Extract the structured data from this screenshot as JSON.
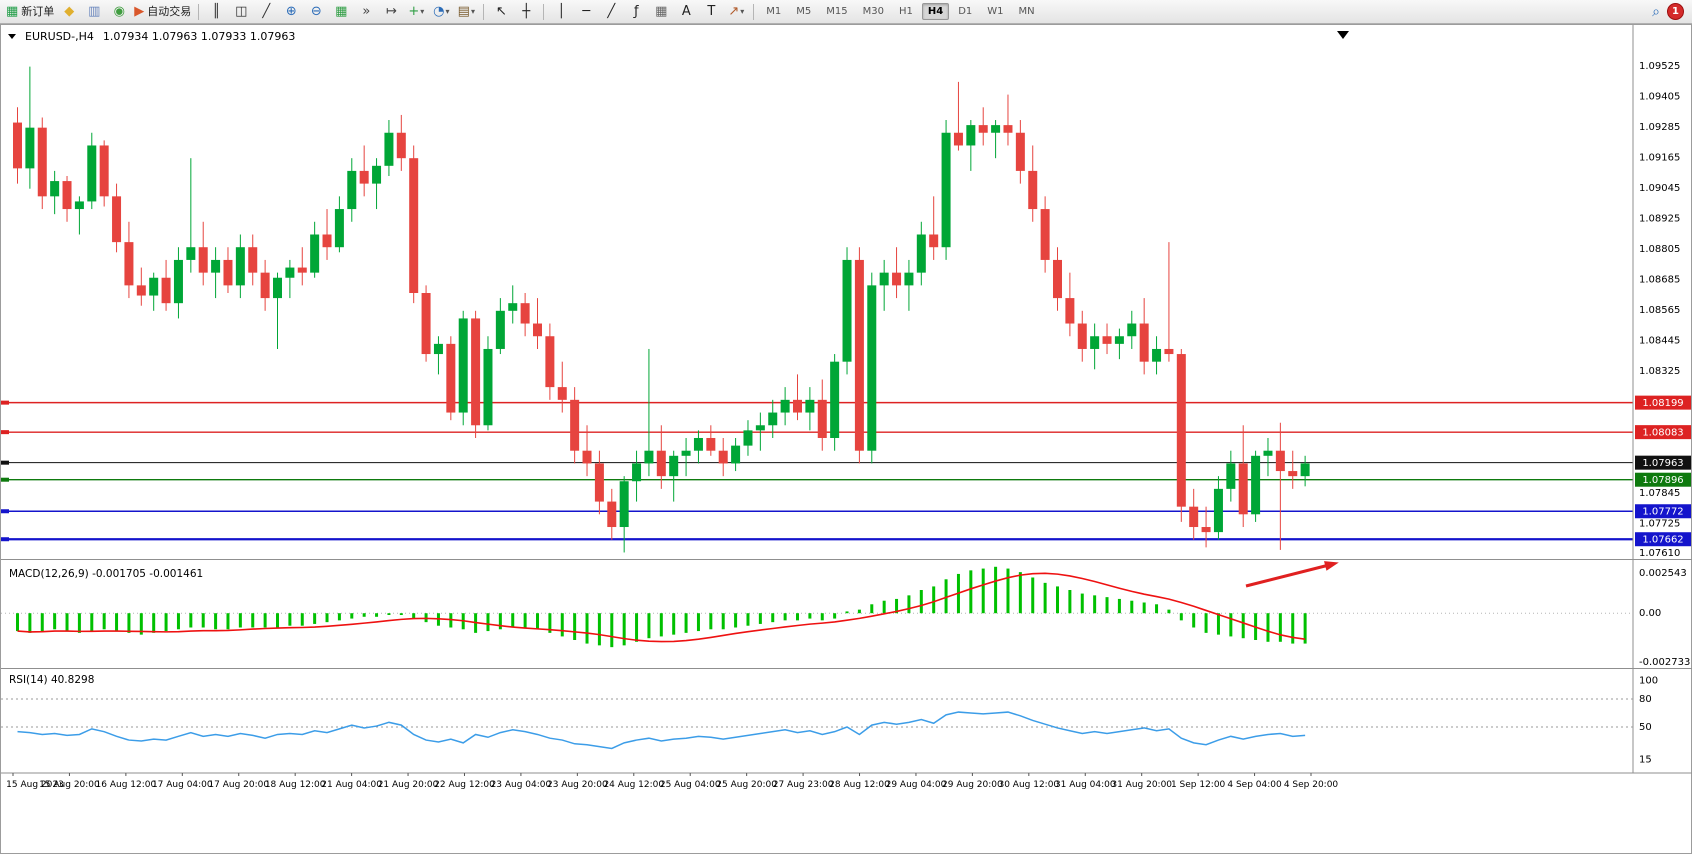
{
  "toolbar": {
    "left_items": [
      {
        "name": "new-order-button",
        "kind": "labeled",
        "glyph": "▦",
        "color": "#1f9d46",
        "label": "新订单"
      },
      {
        "name": "metaeditor-button",
        "kind": "icon",
        "glyph": "◆",
        "color": "#e0af2e"
      },
      {
        "name": "profiles-button",
        "kind": "icon",
        "glyph": "▥",
        "color": "#6a86bd"
      },
      {
        "name": "metaquotes-community-button",
        "kind": "icon",
        "glyph": "◉",
        "color": "#3f9d3f"
      },
      {
        "name": "autotrading-button",
        "kind": "labeled",
        "glyph": "▶",
        "color": "#d9572b",
        "label": "自动交易"
      },
      {
        "kind": "sep"
      },
      {
        "name": "bar-chart-button",
        "kind": "icon",
        "glyph": "║",
        "color": "#333333"
      },
      {
        "name": "candlestick-chart-button",
        "kind": "icon",
        "glyph": "◫",
        "color": "#333333"
      },
      {
        "name": "line-chart-button",
        "kind": "icon",
        "glyph": "╱",
        "color": "#333333"
      },
      {
        "name": "zoom-in-button",
        "kind": "icon",
        "glyph": "⊕",
        "color": "#2b6cb8"
      },
      {
        "name": "zoom-out-button",
        "kind": "icon",
        "glyph": "⊖",
        "color": "#2b6cb8"
      },
      {
        "name": "tile-windows-button",
        "kind": "icon",
        "glyph": "▦",
        "color": "#2f9e44"
      },
      {
        "name": "auto-scroll-button",
        "kind": "icon",
        "glyph": "»",
        "color": "#444444"
      },
      {
        "name": "chart-shift-button",
        "kind": "icon",
        "glyph": "↦",
        "color": "#444444"
      },
      {
        "name": "indicators-button",
        "kind": "dropdown",
        "glyph": "+",
        "color": "#2f9e44"
      },
      {
        "name": "periods-button",
        "kind": "dropdown",
        "glyph": "◔",
        "color": "#2b6cb8"
      },
      {
        "name": "templates-button",
        "kind": "dropdown",
        "glyph": "▤",
        "color": "#7a5c2e"
      },
      {
        "kind": "sep"
      },
      {
        "name": "cursor-button",
        "kind": "icon",
        "glyph": "↖",
        "color": "#222222"
      },
      {
        "name": "crosshair-button",
        "kind": "icon",
        "glyph": "┼",
        "color": "#222222"
      },
      {
        "kind": "sep"
      },
      {
        "name": "vertical-line-button",
        "kind": "icon",
        "glyph": "│",
        "color": "#222222"
      },
      {
        "name": "horizontal-line-button",
        "kind": "icon",
        "glyph": "─",
        "color": "#222222"
      },
      {
        "name": "trendline-button",
        "kind": "icon",
        "glyph": "╱",
        "color": "#222222"
      },
      {
        "name": "fibonacci-button",
        "kind": "icon",
        "glyph": "ƒ",
        "color": "#222222"
      },
      {
        "name": "shapes-button",
        "kind": "icon",
        "glyph": "▦",
        "color": "#666666"
      },
      {
        "name": "text-button",
        "kind": "icon",
        "glyph": "A",
        "color": "#222222"
      },
      {
        "name": "text-label-button",
        "kind": "icon",
        "glyph": "T",
        "color": "#222222"
      },
      {
        "name": "arrows-button",
        "kind": "dropdown",
        "glyph": "↗",
        "color": "#b05a2a"
      },
      {
        "kind": "sep"
      }
    ],
    "timeframes": [
      {
        "label": "M1"
      },
      {
        "label": "M5"
      },
      {
        "label": "M15"
      },
      {
        "label": "M30"
      },
      {
        "label": "H1"
      },
      {
        "label": "H4",
        "active": true
      },
      {
        "label": "D1"
      },
      {
        "label": "W1"
      },
      {
        "label": "MN"
      }
    ],
    "search_glyph": "⌕",
    "notification_badge": "1"
  },
  "chart": {
    "title": "EURUSD-,H4",
    "ohlc": "1.07934 1.07963 1.07933 1.07963"
  },
  "chart_data": {
    "type": "candlestick",
    "symbol": "EURUSD-",
    "timeframe": "H4",
    "title": "EURUSD-,H4 1.07934 1.07963 1.07933 1.07963",
    "y_range": [
      1.076,
      1.0966
    ],
    "y_ticks": [
      "1.09525",
      "1.09405",
      "1.09285",
      "1.09165",
      "1.09045",
      "1.08925",
      "1.08805",
      "1.08685",
      "1.08565",
      "1.08445",
      "1.08325",
      "1.07845",
      "1.07725",
      "1.07610"
    ],
    "x_labels": [
      "15 Aug 2023",
      "15 Aug 20:00",
      "16 Aug 12:00",
      "17 Aug 04:00",
      "17 Aug 20:00",
      "18 Aug 12:00",
      "21 Aug 04:00",
      "21 Aug 20:00",
      "22 Aug 12:00",
      "23 Aug 04:00",
      "23 Aug 20:00",
      "24 Aug 12:00",
      "25 Aug 04:00",
      "25 Aug 20:00",
      "27 Aug 23:00",
      "28 Aug 12:00",
      "29 Aug 04:00",
      "29 Aug 20:00",
      "30 Aug 12:00",
      "31 Aug 04:00",
      "31 Aug 20:00",
      "1 Sep 12:00",
      "4 Sep 04:00",
      "4 Sep 20:00"
    ],
    "colors": {
      "up": "#00a636",
      "down": "#e6443f",
      "background": "#ffffff"
    },
    "candles": [
      [
        1.093,
        1.0936,
        1.0906,
        1.0912
      ],
      [
        1.0912,
        1.0952,
        1.0904,
        1.0928
      ],
      [
        1.0928,
        1.0932,
        1.0896,
        1.0901
      ],
      [
        1.0901,
        1.0911,
        1.0894,
        1.0907
      ],
      [
        1.0907,
        1.0909,
        1.0891,
        1.0896
      ],
      [
        1.0896,
        1.0901,
        1.0886,
        1.0899
      ],
      [
        1.0899,
        1.0926,
        1.0896,
        1.0921
      ],
      [
        1.0921,
        1.0923,
        1.0897,
        1.0901
      ],
      [
        1.0901,
        1.0906,
        1.0879,
        1.0883
      ],
      [
        1.0883,
        1.0891,
        1.0861,
        1.0866
      ],
      [
        1.0866,
        1.0873,
        1.0858,
        1.0862
      ],
      [
        1.0862,
        1.0871,
        1.0856,
        1.0869
      ],
      [
        1.0869,
        1.0876,
        1.0856,
        1.0859
      ],
      [
        1.0859,
        1.0881,
        1.0853,
        1.0876
      ],
      [
        1.0876,
        1.0916,
        1.0871,
        1.0881
      ],
      [
        1.0881,
        1.0891,
        1.0866,
        1.0871
      ],
      [
        1.0871,
        1.0881,
        1.0861,
        1.0876
      ],
      [
        1.0876,
        1.0881,
        1.0863,
        1.0866
      ],
      [
        1.0866,
        1.0886,
        1.0861,
        1.0881
      ],
      [
        1.0881,
        1.0886,
        1.0866,
        1.0871
      ],
      [
        1.0871,
        1.0876,
        1.0856,
        1.0861
      ],
      [
        1.0861,
        1.0871,
        1.0841,
        1.0869
      ],
      [
        1.0869,
        1.0876,
        1.0861,
        1.0873
      ],
      [
        1.0873,
        1.0881,
        1.0866,
        1.0871
      ],
      [
        1.0871,
        1.0891,
        1.0869,
        1.0886
      ],
      [
        1.0886,
        1.0896,
        1.0876,
        1.0881
      ],
      [
        1.0881,
        1.0901,
        1.0879,
        1.0896
      ],
      [
        1.0896,
        1.0916,
        1.0891,
        1.0911
      ],
      [
        1.0911,
        1.0921,
        1.0901,
        1.0906
      ],
      [
        1.0906,
        1.0916,
        1.0896,
        1.0913
      ],
      [
        1.0913,
        1.0931,
        1.0909,
        1.0926
      ],
      [
        1.0926,
        1.0933,
        1.0911,
        1.0916
      ],
      [
        1.0916,
        1.0921,
        1.0859,
        1.0863
      ],
      [
        1.0863,
        1.0866,
        1.0836,
        1.0839
      ],
      [
        1.0839,
        1.0846,
        1.0831,
        1.0843
      ],
      [
        1.0843,
        1.0846,
        1.0813,
        1.0816
      ],
      [
        1.0816,
        1.0856,
        1.0811,
        1.0853
      ],
      [
        1.0853,
        1.0856,
        1.0806,
        1.0811
      ],
      [
        1.0811,
        1.0846,
        1.0809,
        1.0841
      ],
      [
        1.0841,
        1.0861,
        1.0839,
        1.0856
      ],
      [
        1.0856,
        1.0866,
        1.0851,
        1.0859
      ],
      [
        1.0859,
        1.0863,
        1.0846,
        1.0851
      ],
      [
        1.0851,
        1.0861,
        1.0841,
        1.0846
      ],
      [
        1.0846,
        1.0851,
        1.0821,
        1.0826
      ],
      [
        1.0826,
        1.0836,
        1.0816,
        1.0821
      ],
      [
        1.0821,
        1.0826,
        1.0796,
        1.0801
      ],
      [
        1.0801,
        1.0811,
        1.0791,
        1.0796
      ],
      [
        1.0796,
        1.0801,
        1.0776,
        1.0781
      ],
      [
        1.0781,
        1.0786,
        1.0766,
        1.0771
      ],
      [
        1.0771,
        1.0791,
        1.0761,
        1.0789
      ],
      [
        1.0789,
        1.0801,
        1.0781,
        1.0796
      ],
      [
        1.0796,
        1.0841,
        1.0791,
        1.0801
      ],
      [
        1.0801,
        1.0811,
        1.0786,
        1.0791
      ],
      [
        1.0791,
        1.0801,
        1.0781,
        1.0799
      ],
      [
        1.0799,
        1.0806,
        1.0791,
        1.0801
      ],
      [
        1.0801,
        1.0809,
        1.0796,
        1.0806
      ],
      [
        1.0806,
        1.0811,
        1.0799,
        1.0801
      ],
      [
        1.0801,
        1.0806,
        1.0791,
        1.0796
      ],
      [
        1.0796,
        1.0806,
        1.0793,
        1.0803
      ],
      [
        1.0803,
        1.0813,
        1.0799,
        1.0809
      ],
      [
        1.0809,
        1.0816,
        1.0801,
        1.0811
      ],
      [
        1.0811,
        1.0821,
        1.0806,
        1.0816
      ],
      [
        1.0816,
        1.0826,
        1.0811,
        1.0821
      ],
      [
        1.0821,
        1.0831,
        1.0813,
        1.0816
      ],
      [
        1.0816,
        1.0826,
        1.0809,
        1.0821
      ],
      [
        1.0821,
        1.0829,
        1.0801,
        1.0806
      ],
      [
        1.0806,
        1.0839,
        1.0801,
        1.0836
      ],
      [
        1.0836,
        1.0881,
        1.0831,
        1.0876
      ],
      [
        1.0876,
        1.0881,
        1.0796,
        1.0801
      ],
      [
        1.0801,
        1.0871,
        1.0796,
        1.0866
      ],
      [
        1.0866,
        1.0876,
        1.0856,
        1.0871
      ],
      [
        1.0871,
        1.0881,
        1.0861,
        1.0866
      ],
      [
        1.0866,
        1.0876,
        1.0856,
        1.0871
      ],
      [
        1.0871,
        1.0891,
        1.0866,
        1.0886
      ],
      [
        1.0886,
        1.0901,
        1.0876,
        1.0881
      ],
      [
        1.0881,
        1.0931,
        1.0876,
        1.0926
      ],
      [
        1.0926,
        1.0946,
        1.0919,
        1.0921
      ],
      [
        1.0921,
        1.0931,
        1.0911,
        1.0929
      ],
      [
        1.0929,
        1.0936,
        1.0921,
        1.0926
      ],
      [
        1.0926,
        1.0931,
        1.0916,
        1.0929
      ],
      [
        1.0929,
        1.0941,
        1.0921,
        1.0926
      ],
      [
        1.0926,
        1.0931,
        1.0906,
        1.0911
      ],
      [
        1.0911,
        1.0921,
        1.0891,
        1.0896
      ],
      [
        1.0896,
        1.0901,
        1.0871,
        1.0876
      ],
      [
        1.0876,
        1.0881,
        1.0856,
        1.0861
      ],
      [
        1.0861,
        1.0871,
        1.0846,
        1.0851
      ],
      [
        1.0851,
        1.0856,
        1.0836,
        1.0841
      ],
      [
        1.0841,
        1.0851,
        1.0833,
        1.0846
      ],
      [
        1.0846,
        1.0851,
        1.0839,
        1.0843
      ],
      [
        1.0843,
        1.0849,
        1.0837,
        1.0846
      ],
      [
        1.0846,
        1.0856,
        1.0841,
        1.0851
      ],
      [
        1.0851,
        1.0861,
        1.0831,
        1.0836
      ],
      [
        1.0836,
        1.0846,
        1.0831,
        1.0841
      ],
      [
        1.0841,
        1.0883,
        1.0836,
        1.0839
      ],
      [
        1.0839,
        1.0841,
        1.0773,
        1.0779
      ],
      [
        1.0779,
        1.0786,
        1.0766,
        1.0771
      ],
      [
        1.0771,
        1.0779,
        1.0763,
        1.0769
      ],
      [
        1.0769,
        1.0791,
        1.0766,
        1.0786
      ],
      [
        1.0786,
        1.0801,
        1.0781,
        1.0796
      ],
      [
        1.0796,
        1.0811,
        1.0771,
        1.0776
      ],
      [
        1.0776,
        1.0801,
        1.0773,
        1.0799
      ],
      [
        1.0799,
        1.0806,
        1.0791,
        1.0801
      ],
      [
        1.0801,
        1.0812,
        1.0762,
        1.0793
      ],
      [
        1.0793,
        1.0801,
        1.0786,
        1.0791
      ],
      [
        1.0791,
        1.0799,
        1.0787,
        1.0796
      ]
    ],
    "levels": [
      {
        "price": 1.08199,
        "label": "1.08199",
        "color": "#dd2222",
        "kind": "horizontal-line"
      },
      {
        "price": 1.08083,
        "label": "1.08083",
        "color": "#dd2222",
        "kind": "horizontal-line"
      },
      {
        "price": 1.07963,
        "label": "1.07963",
        "color": "#111111",
        "kind": "bid-price"
      },
      {
        "price": 1.07896,
        "label": "1.07896",
        "color": "#0e7a0e",
        "kind": "horizontal-line"
      },
      {
        "price": 1.07772,
        "label": "1.07772",
        "color": "#1414cc",
        "kind": "horizontal-line"
      },
      {
        "price": 1.07662,
        "label": "1.07662",
        "color": "#1414cc",
        "kind": "horizontal-line",
        "thick": true
      }
    ],
    "indicators": {
      "macd": {
        "label": "MACD(12,26,9) -0.001705 -0.001461",
        "axis_labels": [
          "0.002543",
          "0.00",
          "-0.002733"
        ],
        "range": [
          -0.0029,
          0.0027
        ],
        "histogram_color": "#00c000",
        "signal_color": "#ee1111",
        "values": [
          -0.001,
          -0.0011,
          -0.001,
          -0.0009,
          -0.001,
          -0.0011,
          -0.001,
          -0.0009,
          -0.001,
          -0.0011,
          -0.0012,
          -0.0011,
          -0.001,
          -0.0009,
          -0.0008,
          -0.0008,
          -0.0009,
          -0.0009,
          -0.0008,
          -0.0008,
          -0.0008,
          -0.0008,
          -0.0007,
          -0.0007,
          -0.0006,
          -0.0005,
          -0.0004,
          -0.0003,
          -0.0002,
          -0.0002,
          -0.0001,
          -0.0001,
          -0.0003,
          -0.0005,
          -0.0007,
          -0.0008,
          -0.0009,
          -0.0011,
          -0.001,
          -0.0009,
          -0.0008,
          -0.0008,
          -0.0009,
          -0.0011,
          -0.0013,
          -0.0015,
          -0.0017,
          -0.0018,
          -0.0019,
          -0.0018,
          -0.0016,
          -0.0014,
          -0.0013,
          -0.0012,
          -0.0011,
          -0.001,
          -0.0009,
          -0.0009,
          -0.0008,
          -0.0007,
          -0.0006,
          -0.0005,
          -0.0004,
          -0.0004,
          -0.0003,
          -0.0004,
          -0.0003,
          0.0001,
          0.0002,
          0.0005,
          0.0007,
          0.0008,
          0.001,
          0.0013,
          0.0015,
          0.0019,
          0.0022,
          0.0024,
          0.0025,
          0.0026,
          0.0025,
          0.0023,
          0.002,
          0.0017,
          0.0015,
          0.0013,
          0.0011,
          0.001,
          0.0009,
          0.0008,
          0.0007,
          0.0006,
          0.0005,
          0.0002,
          -0.0004,
          -0.0008,
          -0.0011,
          -0.0012,
          -0.0013,
          -0.0014,
          -0.0015,
          -0.0016,
          -0.0016,
          -0.0017,
          -0.0017
        ]
      },
      "rsi": {
        "label": "RSI(14) 40.8298",
        "axis_labels": [
          "100",
          "80",
          "50",
          "15"
        ],
        "levels": [
          80,
          50
        ],
        "line_color": "#3c9de8",
        "values": [
          45,
          44,
          42,
          43,
          41,
          42,
          48,
          45,
          40,
          36,
          35,
          37,
          36,
          40,
          44,
          40,
          42,
          40,
          43,
          41,
          38,
          42,
          43,
          42,
          46,
          44,
          48,
          52,
          49,
          51,
          55,
          52,
          42,
          36,
          34,
          37,
          33,
          42,
          39,
          44,
          47,
          45,
          42,
          38,
          36,
          32,
          31,
          29,
          27,
          33,
          36,
          38,
          35,
          37,
          38,
          40,
          39,
          37,
          39,
          41,
          43,
          45,
          47,
          44,
          46,
          42,
          45,
          50,
          42,
          52,
          55,
          53,
          55,
          58,
          54,
          63,
          66,
          65,
          64,
          65,
          66,
          62,
          57,
          53,
          49,
          46,
          43,
          45,
          43,
          45,
          47,
          49,
          46,
          48,
          38,
          33,
          31,
          36,
          40,
          37,
          40,
          42,
          43,
          40,
          41
        ]
      }
    },
    "annotation_arrow": {
      "from": [
        1245,
        585
      ],
      "to": [
        1332,
        563
      ],
      "color": "#e02020"
    }
  }
}
